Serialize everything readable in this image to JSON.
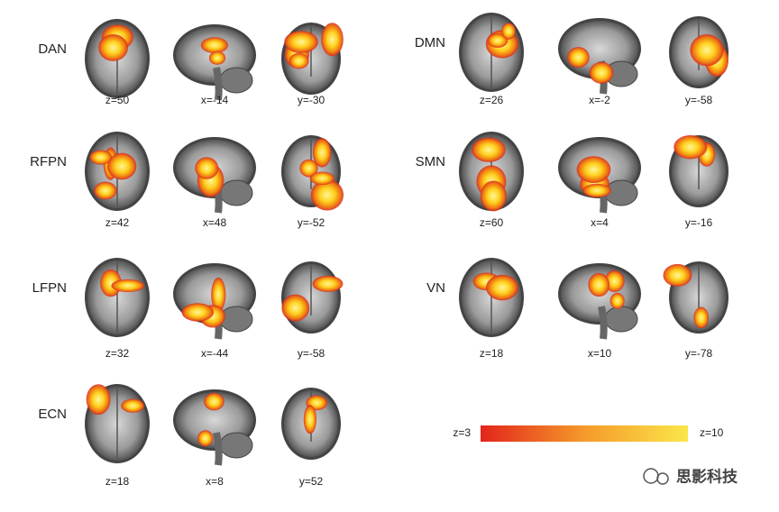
{
  "networks": [
    {
      "label": "DAN",
      "slices": [
        "z=50",
        "x=-14",
        "y=-30"
      ]
    },
    {
      "label": "RFPN",
      "slices": [
        "z=42",
        "x=48",
        "y=-52"
      ]
    },
    {
      "label": "LFPN",
      "slices": [
        "z=32",
        "x=-44",
        "y=-58"
      ]
    },
    {
      "label": "ECN",
      "slices": [
        "z=18",
        "x=8",
        "y=52"
      ]
    },
    {
      "label": "DMN",
      "slices": [
        "z=26",
        "x=-2",
        "y=-58"
      ]
    },
    {
      "label": "SMN",
      "slices": [
        "z=60",
        "x=4",
        "y=-16"
      ]
    },
    {
      "label": "VN",
      "slices": [
        "z=18",
        "x=10",
        "y=-78"
      ]
    }
  ],
  "colorbar": {
    "min_label": "z=3",
    "max_label": "z=10"
  },
  "watermark": "思影科技"
}
